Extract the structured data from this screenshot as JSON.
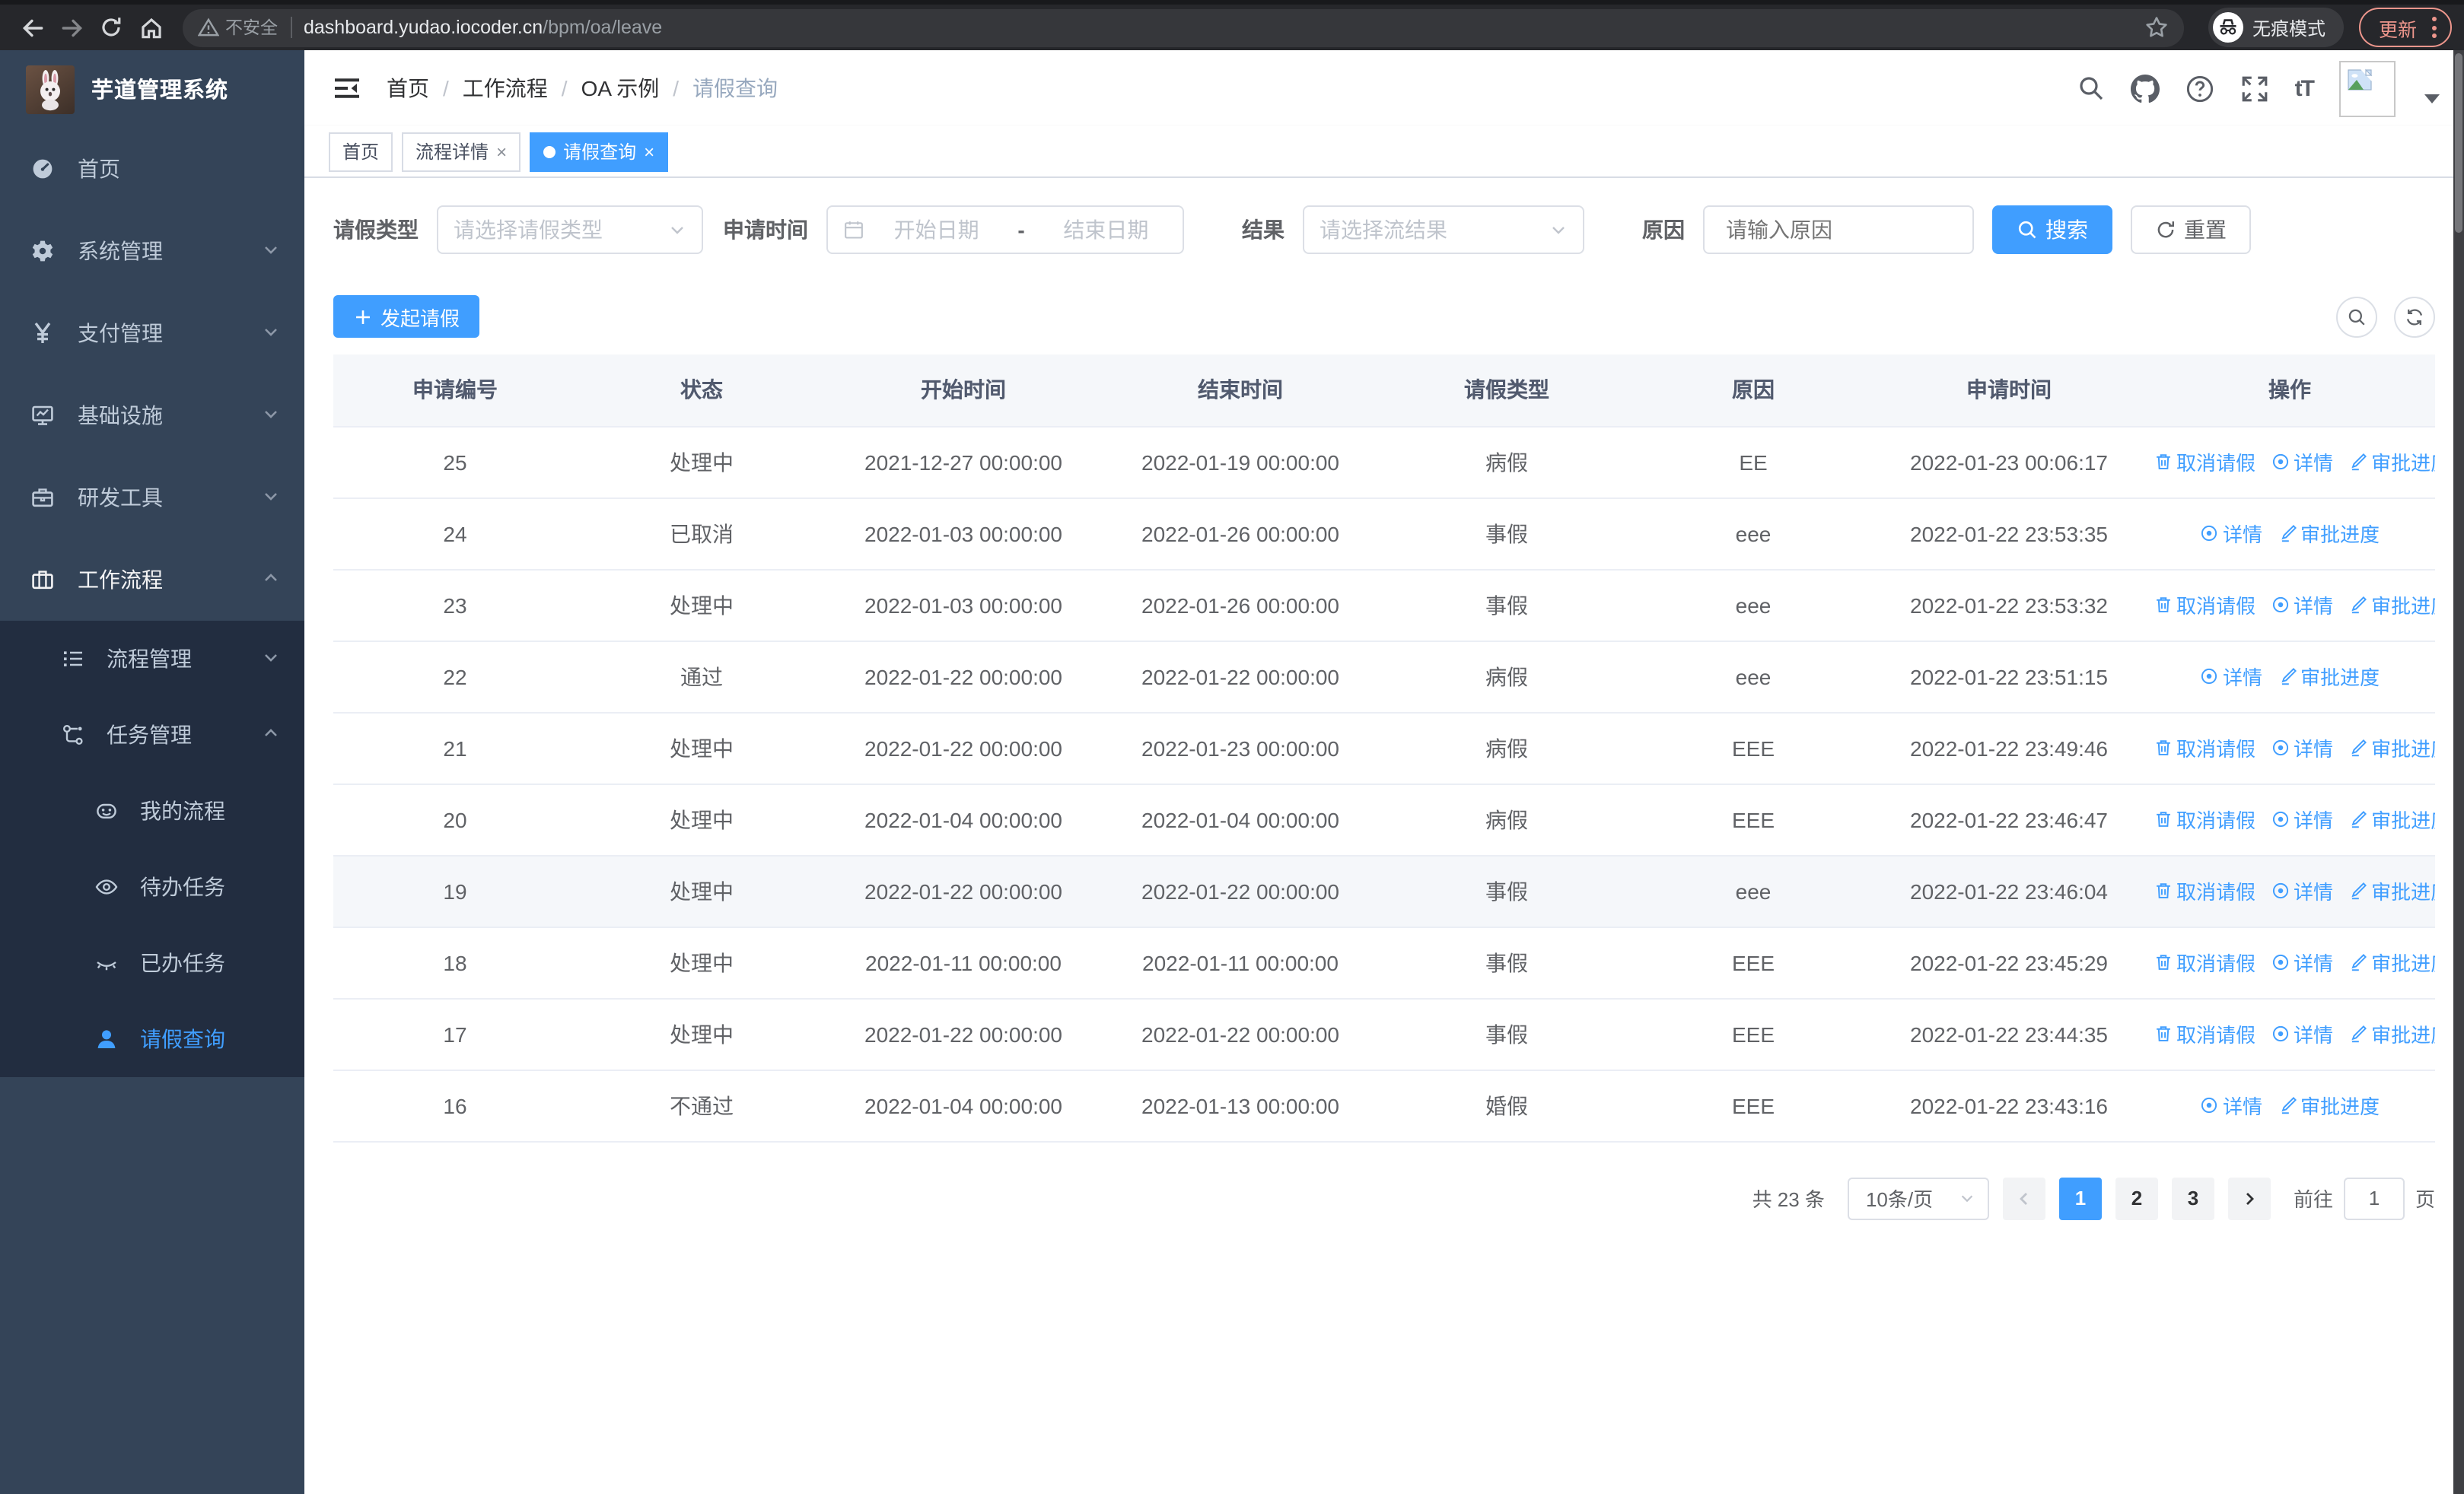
{
  "browser": {
    "security_label": "不安全",
    "url_host": "dashboard.yudao.iocoder.cn",
    "url_path": "/bpm/oa/leave",
    "incognito_label": "无痕模式",
    "update_label": "更新"
  },
  "sidebar": {
    "title": "芋道管理系统",
    "menu": [
      {
        "label": "首页"
      },
      {
        "label": "系统管理"
      },
      {
        "label": "支付管理"
      },
      {
        "label": "基础设施"
      },
      {
        "label": "研发工具"
      },
      {
        "label": "工作流程"
      }
    ],
    "submenu": [
      {
        "label": "流程管理"
      },
      {
        "label": "任务管理"
      },
      {
        "label": "我的流程"
      },
      {
        "label": "待办任务"
      },
      {
        "label": "已办任务"
      },
      {
        "label": "请假查询"
      }
    ]
  },
  "header": {
    "breadcrumb": [
      "首页",
      "工作流程",
      "OA 示例",
      "请假查询"
    ],
    "tabs": [
      {
        "label": "首页"
      },
      {
        "label": "流程详情"
      },
      {
        "label": "请假查询"
      }
    ]
  },
  "filters": {
    "type_label": "请假类型",
    "type_placeholder": "请选择请假类型",
    "time_label": "申请时间",
    "start_placeholder": "开始日期",
    "range_separator": "-",
    "end_placeholder": "结束日期",
    "result_label": "结果",
    "result_placeholder": "请选择流结果",
    "reason_label": "原因",
    "reason_placeholder": "请输入原因",
    "search_label": "搜索",
    "reset_label": "重置"
  },
  "toolbar": {
    "create_label": "发起请假"
  },
  "table": {
    "columns": [
      "申请编号",
      "状态",
      "开始时间",
      "结束时间",
      "请假类型",
      "原因",
      "申请时间",
      "操作"
    ],
    "action_labels": {
      "cancel": "取消请假",
      "detail": "详情",
      "progress": "审批进度"
    },
    "action_icons": {
      "cancel": "trash-icon",
      "detail": "eye-icon",
      "progress": "pen-icon"
    },
    "rows": [
      {
        "id": "25",
        "status": "处理中",
        "start": "2021-12-27 00:00:00",
        "end": "2022-01-19 00:00:00",
        "type": "病假",
        "reason": "EE",
        "applied": "2022-01-23 00:06:17",
        "actions": [
          "cancel",
          "detail",
          "progress"
        ],
        "highlight": false
      },
      {
        "id": "24",
        "status": "已取消",
        "start": "2022-01-03 00:00:00",
        "end": "2022-01-26 00:00:00",
        "type": "事假",
        "reason": "eee",
        "applied": "2022-01-22 23:53:35",
        "actions": [
          "detail",
          "progress"
        ],
        "highlight": false
      },
      {
        "id": "23",
        "status": "处理中",
        "start": "2022-01-03 00:00:00",
        "end": "2022-01-26 00:00:00",
        "type": "事假",
        "reason": "eee",
        "applied": "2022-01-22 23:53:32",
        "actions": [
          "cancel",
          "detail",
          "progress"
        ],
        "highlight": false
      },
      {
        "id": "22",
        "status": "通过",
        "start": "2022-01-22 00:00:00",
        "end": "2022-01-22 00:00:00",
        "type": "病假",
        "reason": "eee",
        "applied": "2022-01-22 23:51:15",
        "actions": [
          "detail",
          "progress"
        ],
        "highlight": false
      },
      {
        "id": "21",
        "status": "处理中",
        "start": "2022-01-22 00:00:00",
        "end": "2022-01-23 00:00:00",
        "type": "病假",
        "reason": "EEE",
        "applied": "2022-01-22 23:49:46",
        "actions": [
          "cancel",
          "detail",
          "progress"
        ],
        "highlight": false
      },
      {
        "id": "20",
        "status": "处理中",
        "start": "2022-01-04 00:00:00",
        "end": "2022-01-04 00:00:00",
        "type": "病假",
        "reason": "EEE",
        "applied": "2022-01-22 23:46:47",
        "actions": [
          "cancel",
          "detail",
          "progress"
        ],
        "highlight": false
      },
      {
        "id": "19",
        "status": "处理中",
        "start": "2022-01-22 00:00:00",
        "end": "2022-01-22 00:00:00",
        "type": "事假",
        "reason": "eee",
        "applied": "2022-01-22 23:46:04",
        "actions": [
          "cancel",
          "detail",
          "progress"
        ],
        "highlight": true
      },
      {
        "id": "18",
        "status": "处理中",
        "start": "2022-01-11 00:00:00",
        "end": "2022-01-11 00:00:00",
        "type": "事假",
        "reason": "EEE",
        "applied": "2022-01-22 23:45:29",
        "actions": [
          "cancel",
          "detail",
          "progress"
        ],
        "highlight": false
      },
      {
        "id": "17",
        "status": "处理中",
        "start": "2022-01-22 00:00:00",
        "end": "2022-01-22 00:00:00",
        "type": "事假",
        "reason": "EEE",
        "applied": "2022-01-22 23:44:35",
        "actions": [
          "cancel",
          "detail",
          "progress"
        ],
        "highlight": false
      },
      {
        "id": "16",
        "status": "不通过",
        "start": "2022-01-04 00:00:00",
        "end": "2022-01-13 00:00:00",
        "type": "婚假",
        "reason": "EEE",
        "applied": "2022-01-22 23:43:16",
        "actions": [
          "detail",
          "progress"
        ],
        "highlight": false
      }
    ]
  },
  "pagination": {
    "total_label": "共 23 条",
    "page_size": "10条/页",
    "pages": [
      "1",
      "2",
      "3"
    ],
    "active_page": "1",
    "goto_label": "前往",
    "goto_value": "1",
    "page_suffix": "页"
  },
  "colors": {
    "primary": "#409eff",
    "sidebar_bg": "#344458",
    "submenu_bg": "#222d40",
    "update_accent": "#ed968c"
  }
}
